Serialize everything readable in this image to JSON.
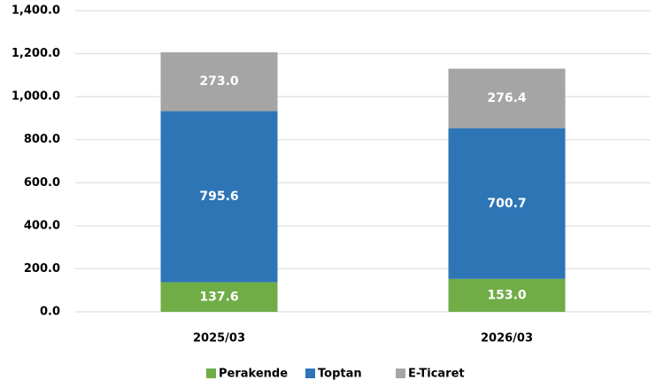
{
  "chart_data": {
    "type": "stacked_bar",
    "categories": [
      "2025/03",
      "2026/03"
    ],
    "series": [
      {
        "name": "Perakende",
        "color": "#70ad47",
        "values": [
          137.6,
          153.0
        ],
        "value_labels": [
          "137.6",
          "153.0"
        ]
      },
      {
        "name": "Toptan",
        "color": "#2e75b6",
        "values": [
          795.6,
          700.7
        ],
        "value_labels": [
          "795.6",
          "700.7"
        ]
      },
      {
        "name": "E-Ticaret",
        "color": "#a5a5a5",
        "values": [
          273.0,
          276.4
        ],
        "value_labels": [
          "273.0",
          "276.4"
        ]
      }
    ],
    "ylim": [
      0,
      1400
    ],
    "yticks": [
      {
        "value": 0,
        "label": "0.0"
      },
      {
        "value": 200,
        "label": "200.0"
      },
      {
        "value": 400,
        "label": "400.0"
      },
      {
        "value": 600,
        "label": "600.0"
      },
      {
        "value": 800,
        "label": "800.0"
      },
      {
        "value": 1000,
        "label": "1,000.0"
      },
      {
        "value": 1200,
        "label": "1,200.0"
      },
      {
        "value": 1400,
        "label": "1,400.0"
      }
    ],
    "grid": true,
    "legend": "bottom"
  }
}
